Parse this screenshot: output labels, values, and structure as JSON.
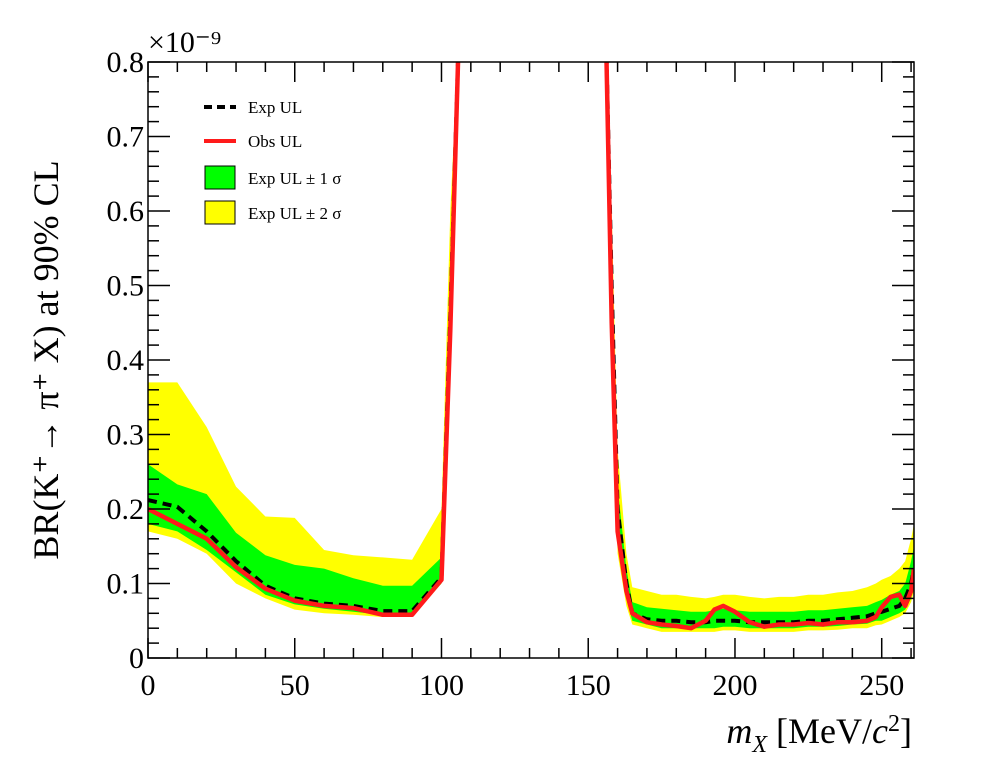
{
  "chart_data": {
    "type": "area",
    "title": "",
    "xlabel": {
      "main": "m",
      "sub": "X",
      "unit_open": " [MeV/",
      "c": "c",
      "sup": "2",
      "unit_close": "]"
    },
    "ylabel": "BR(K⁺→ π⁺ X) at 90% CL",
    "yscale_label": "×10⁻⁹",
    "xlim": [
      0,
      261
    ],
    "ylim": [
      0,
      0.8
    ],
    "xticks": [
      "0",
      "50",
      "100",
      "150",
      "200",
      "250"
    ],
    "yticks": [
      "0",
      "0.1",
      "0.2",
      "0.3",
      "0.4",
      "0.5",
      "0.6",
      "0.7",
      "0.8"
    ],
    "legend_position": "top-left",
    "legend": {
      "exp": "Exp UL",
      "obs": "Obs UL",
      "sigma1": "Exp UL ± 1 σ",
      "sigma2": "Exp UL ± 2 σ"
    },
    "colors": {
      "exp": "#000000",
      "obs": "#ff1a1a",
      "sigma1": "#00ff00",
      "sigma2": "#ffff00"
    },
    "segments": [
      {
        "x": [
          0,
          10,
          20,
          30,
          40,
          50,
          60,
          70,
          80,
          90,
          100,
          103,
          106
        ],
        "exp": [
          0.212,
          0.203,
          0.17,
          0.13,
          0.097,
          0.08,
          0.073,
          0.07,
          0.063,
          0.063,
          0.108,
          0.46,
          0.85
        ],
        "obs": [
          0.2,
          0.18,
          0.16,
          0.122,
          0.093,
          0.077,
          0.07,
          0.067,
          0.058,
          0.058,
          0.105,
          0.44,
          0.85
        ],
        "sigma1_lo": [
          0.18,
          0.17,
          0.145,
          0.115,
          0.085,
          0.072,
          0.066,
          0.062,
          0.058,
          0.058,
          0.1,
          0.42,
          0.85
        ],
        "sigma1_hi": [
          0.26,
          0.233,
          0.22,
          0.168,
          0.138,
          0.125,
          0.12,
          0.107,
          0.097,
          0.097,
          0.135,
          0.5,
          0.85
        ],
        "sigma2_lo": [
          0.17,
          0.16,
          0.14,
          0.1,
          0.08,
          0.065,
          0.06,
          0.058,
          0.055,
          0.055,
          0.1,
          0.4,
          0.85
        ],
        "sigma2_hi": [
          0.37,
          0.37,
          0.31,
          0.23,
          0.19,
          0.188,
          0.145,
          0.138,
          0.135,
          0.132,
          0.2,
          0.6,
          0.85
        ]
      },
      {
        "x": [
          156,
          158,
          160,
          163,
          165,
          170,
          175,
          180,
          185,
          190,
          193,
          196,
          200,
          205,
          210,
          215,
          220,
          225,
          230,
          235,
          240,
          245,
          248,
          250,
          253,
          256,
          258,
          260,
          261
        ],
        "exp": [
          0.85,
          0.5,
          0.2,
          0.1,
          0.06,
          0.052,
          0.05,
          0.05,
          0.048,
          0.048,
          0.05,
          0.05,
          0.05,
          0.048,
          0.048,
          0.048,
          0.048,
          0.05,
          0.05,
          0.052,
          0.054,
          0.056,
          0.06,
          0.062,
          0.066,
          0.07,
          0.08,
          0.1,
          0.12
        ],
        "obs": [
          0.85,
          0.45,
          0.17,
          0.09,
          0.06,
          0.048,
          0.045,
          0.043,
          0.04,
          0.05,
          0.065,
          0.07,
          0.062,
          0.048,
          0.042,
          0.045,
          0.045,
          0.047,
          0.045,
          0.048,
          0.048,
          0.05,
          0.055,
          0.068,
          0.082,
          0.085,
          0.07,
          0.09,
          0.12
        ],
        "sigma1_lo": [
          0.85,
          0.45,
          0.16,
          0.08,
          0.05,
          0.045,
          0.04,
          0.04,
          0.04,
          0.04,
          0.04,
          0.042,
          0.042,
          0.04,
          0.04,
          0.04,
          0.04,
          0.042,
          0.042,
          0.043,
          0.045,
          0.046,
          0.05,
          0.05,
          0.055,
          0.06,
          0.065,
          0.08,
          0.1
        ],
        "sigma1_hi": [
          0.85,
          0.55,
          0.23,
          0.12,
          0.075,
          0.068,
          0.066,
          0.064,
          0.062,
          0.062,
          0.064,
          0.066,
          0.064,
          0.062,
          0.062,
          0.062,
          0.062,
          0.064,
          0.064,
          0.066,
          0.068,
          0.07,
          0.075,
          0.078,
          0.085,
          0.09,
          0.1,
          0.13,
          0.15
        ],
        "sigma2_lo": [
          0.85,
          0.4,
          0.14,
          0.07,
          0.045,
          0.04,
          0.035,
          0.035,
          0.035,
          0.035,
          0.035,
          0.037,
          0.037,
          0.035,
          0.035,
          0.035,
          0.035,
          0.037,
          0.037,
          0.038,
          0.04,
          0.04,
          0.044,
          0.045,
          0.05,
          0.055,
          0.06,
          0.075,
          0.09
        ],
        "sigma2_hi": [
          0.85,
          0.6,
          0.28,
          0.14,
          0.095,
          0.09,
          0.085,
          0.085,
          0.082,
          0.08,
          0.082,
          0.085,
          0.085,
          0.082,
          0.08,
          0.082,
          0.082,
          0.085,
          0.085,
          0.088,
          0.09,
          0.095,
          0.1,
          0.105,
          0.11,
          0.12,
          0.13,
          0.16,
          0.18
        ]
      }
    ]
  }
}
